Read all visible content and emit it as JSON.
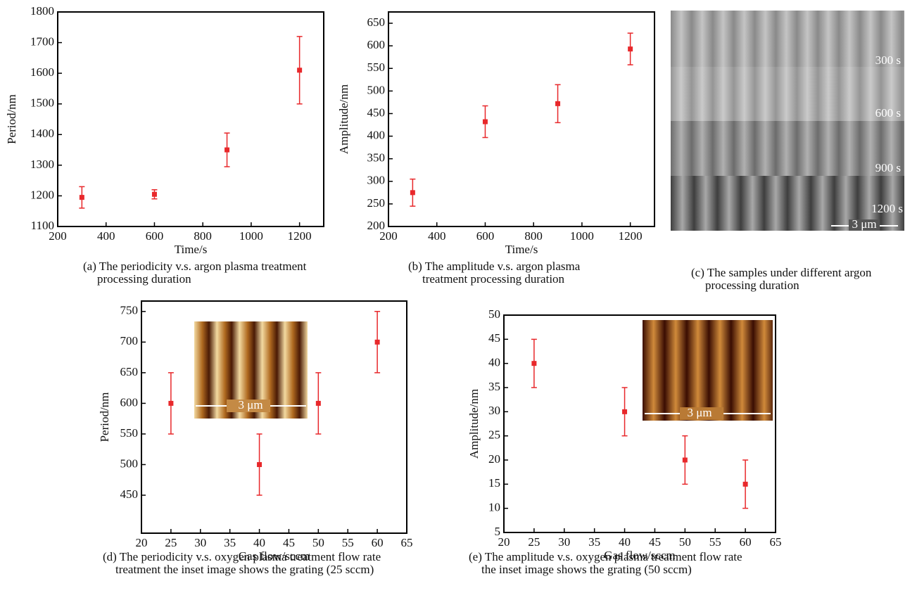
{
  "chart_data": [
    {
      "type": "scatter",
      "x": [
        300,
        600,
        900,
        1200
      ],
      "values": [
        1195,
        1205,
        1350,
        1610
      ],
      "errors": [
        35,
        15,
        55,
        110
      ],
      "color": "#e8282b",
      "xlim": [
        200,
        1300
      ],
      "xticks": [
        200,
        400,
        600,
        800,
        1000,
        1200
      ],
      "ylim": [
        1100,
        1800
      ],
      "yticks": [
        1100,
        1200,
        1300,
        1400,
        1500,
        1600,
        1700,
        1800
      ],
      "xlabel": "Time/s",
      "ylabel": "Period/nm",
      "caption": [
        "(a) The periodicity v.s. argon plasma treatment",
        "processing duration"
      ]
    },
    {
      "type": "scatter",
      "x": [
        300,
        600,
        900,
        1200
      ],
      "values": [
        275,
        432,
        472,
        593
      ],
      "errors": [
        30,
        35,
        42,
        35
      ],
      "color": "#e8282b",
      "xlim": [
        200,
        1300
      ],
      "xticks": [
        200,
        400,
        600,
        800,
        1000,
        1200
      ],
      "ylim": [
        200,
        675
      ],
      "yticks": [
        200,
        250,
        300,
        350,
        400,
        450,
        500,
        550,
        600,
        650
      ],
      "xlabel": "Time/s",
      "ylabel": "Amplitude/nm",
      "caption": [
        "(b) The amplitude v.s. argon plasma",
        "treatment processing duration"
      ]
    },
    {
      "type": "scatter",
      "x": [
        25,
        40,
        50,
        60
      ],
      "values": [
        600,
        500,
        600,
        700
      ],
      "errors": [
        50,
        50,
        50,
        50
      ],
      "color": "#e8282b",
      "xlim": [
        20,
        65
      ],
      "xticks": [
        20,
        25,
        30,
        35,
        40,
        45,
        50,
        55,
        60,
        65
      ],
      "ylim": [
        388,
        767
      ],
      "yticks": [
        450,
        500,
        550,
        600,
        650,
        700,
        750
      ],
      "xlabel": "Gas flow/sccm",
      "ylabel": "Period/nm",
      "inset": {
        "scale_bar": "3 μm"
      },
      "caption": [
        "(d) The periodicity v.s. oxygen plasma treatment flow rate",
        "treatment the inset image shows the grating (25 sccm)"
      ]
    },
    {
      "type": "scatter",
      "x": [
        25,
        40,
        50,
        60
      ],
      "values": [
        40,
        30,
        20,
        15
      ],
      "errors": [
        5,
        5,
        5,
        5
      ],
      "color": "#e8282b",
      "xlim": [
        20,
        65
      ],
      "xticks": [
        20,
        25,
        30,
        35,
        40,
        45,
        50,
        55,
        60,
        65
      ],
      "ylim": [
        5,
        50
      ],
      "yticks": [
        5,
        10,
        15,
        20,
        25,
        30,
        35,
        40,
        45,
        50
      ],
      "xlabel": "Gas flow/sccm",
      "ylabel": "Amplitude/nm",
      "inset": {
        "scale_bar": "3 μm"
      },
      "caption": [
        "(e) The amplitude v.s. oxygen plasma treatment flow rate",
        "the inset image shows the grating (50 sccm)"
      ]
    }
  ],
  "sem_panel": {
    "labels": [
      "300 s",
      "600 s",
      "900 s",
      "1200 s"
    ],
    "scale_bar": "3 μm",
    "caption": [
      "(c) The samples under different argon",
      "processing duration"
    ]
  }
}
